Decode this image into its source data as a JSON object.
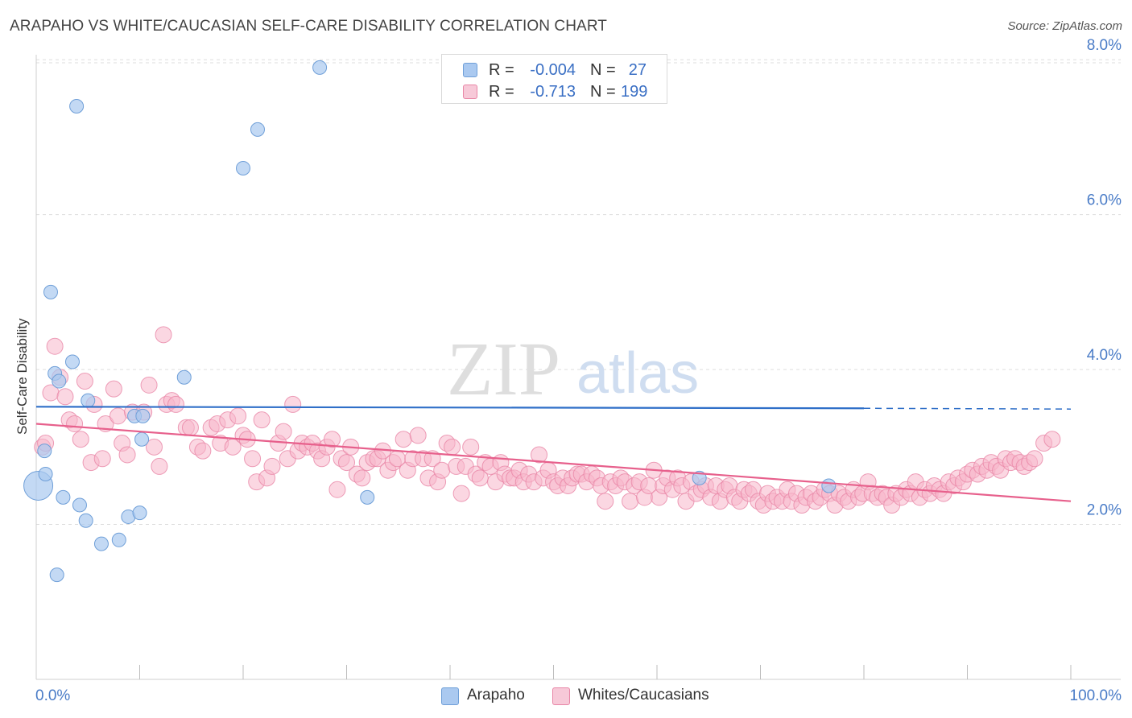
{
  "header": {
    "title": "ARAPAHO VS WHITE/CAUCASIAN SELF-CARE DISABILITY CORRELATION CHART",
    "source": "Source: ZipAtlas.com"
  },
  "watermark": {
    "zip": "ZIP",
    "atlas": "atlas"
  },
  "legend_top": {
    "rows": [
      {
        "r_label": "R =",
        "r_value": "-0.004",
        "n_label": "N =",
        "n_value": "27"
      },
      {
        "r_label": "R =",
        "r_value": "-0.713",
        "n_label": "N =",
        "n_value": "199"
      }
    ]
  },
  "legend_bottom": {
    "items": [
      {
        "label": "Arapaho"
      },
      {
        "label": "Whites/Caucasians"
      }
    ]
  },
  "colors": {
    "arapaho_fill": "#aac9f0",
    "arapaho_stroke": "#6f9fd8",
    "arapaho_line": "#2f6fc8",
    "white_fill": "#f7b6cb",
    "white_stroke": "#e886a6",
    "white_line": "#e7608c",
    "tick_label": "#4a7cc7",
    "grid": "#dddddd"
  },
  "chart_data": {
    "type": "scatter",
    "title": "ARAPAHO VS WHITE/CAUCASIAN SELF-CARE DISABILITY CORRELATION CHART",
    "xlabel": "",
    "ylabel": "Self-Care Disability",
    "xlim": [
      0,
      100
    ],
    "ylim": [
      0,
      8.2
    ],
    "x_tick_labels": [
      "0.0%",
      "100.0%"
    ],
    "y_ticks": [
      2,
      4,
      6,
      8
    ],
    "y_tick_labels": [
      "2.0%",
      "4.0%",
      "6.0%",
      "8.0%"
    ],
    "grid": true,
    "legend_position": "top-center",
    "series": [
      {
        "name": "Arapaho",
        "r": -0.004,
        "n": 27,
        "points": [
          [
            0.2,
            2.5
          ],
          [
            0.8,
            2.95
          ],
          [
            0.9,
            2.65
          ],
          [
            1.4,
            5.0
          ],
          [
            1.8,
            3.95
          ],
          [
            2.0,
            1.35
          ],
          [
            2.2,
            3.85
          ],
          [
            2.6,
            2.35
          ],
          [
            3.5,
            4.1
          ],
          [
            3.9,
            7.4
          ],
          [
            4.2,
            2.25
          ],
          [
            4.8,
            2.05
          ],
          [
            5.0,
            3.6
          ],
          [
            6.3,
            1.75
          ],
          [
            8.0,
            1.8
          ],
          [
            8.9,
            2.1
          ],
          [
            9.5,
            3.4
          ],
          [
            10.0,
            2.15
          ],
          [
            10.2,
            3.1
          ],
          [
            10.3,
            3.4
          ],
          [
            14.3,
            3.9
          ],
          [
            20.0,
            6.6
          ],
          [
            21.4,
            7.1
          ],
          [
            27.4,
            7.9
          ],
          [
            64.1,
            2.6
          ],
          [
            76.6,
            2.5
          ],
          [
            32.0,
            2.35
          ]
        ],
        "trend": {
          "x0": 0,
          "y0": 3.52,
          "x1": 80,
          "y1": 3.5,
          "dashed_to_x": 100,
          "dashed_to_y": 3.49
        }
      },
      {
        "name": "Whites/Caucasians",
        "r": -0.713,
        "n": 199,
        "points": [
          [
            0.6,
            3.0
          ],
          [
            0.9,
            3.05
          ],
          [
            1.4,
            3.7
          ],
          [
            1.8,
            4.3
          ],
          [
            2.3,
            3.9
          ],
          [
            2.8,
            3.65
          ],
          [
            3.2,
            3.35
          ],
          [
            3.7,
            3.3
          ],
          [
            4.3,
            3.1
          ],
          [
            4.7,
            3.85
          ],
          [
            5.3,
            2.8
          ],
          [
            5.6,
            3.55
          ],
          [
            6.4,
            2.85
          ],
          [
            6.7,
            3.3
          ],
          [
            7.5,
            3.75
          ],
          [
            7.9,
            3.4
          ],
          [
            8.3,
            3.05
          ],
          [
            8.8,
            2.9
          ],
          [
            9.3,
            3.45
          ],
          [
            10.4,
            3.45
          ],
          [
            10.9,
            3.8
          ],
          [
            11.4,
            3.0
          ],
          [
            11.9,
            2.75
          ],
          [
            12.3,
            4.45
          ],
          [
            12.6,
            3.55
          ],
          [
            13.1,
            3.6
          ],
          [
            13.5,
            3.55
          ],
          [
            14.5,
            3.25
          ],
          [
            14.9,
            3.25
          ],
          [
            15.6,
            3.0
          ],
          [
            16.1,
            2.95
          ],
          [
            16.9,
            3.25
          ],
          [
            17.5,
            3.3
          ],
          [
            17.8,
            3.05
          ],
          [
            18.5,
            3.35
          ],
          [
            19.0,
            3.0
          ],
          [
            19.5,
            3.4
          ],
          [
            20.0,
            3.15
          ],
          [
            20.4,
            3.1
          ],
          [
            20.9,
            2.85
          ],
          [
            21.3,
            2.55
          ],
          [
            21.8,
            3.35
          ],
          [
            22.3,
            2.6
          ],
          [
            22.8,
            2.75
          ],
          [
            23.4,
            3.05
          ],
          [
            23.9,
            3.2
          ],
          [
            24.3,
            2.85
          ],
          [
            24.8,
            3.55
          ],
          [
            25.3,
            2.95
          ],
          [
            25.7,
            3.05
          ],
          [
            26.2,
            3.0
          ],
          [
            26.7,
            3.05
          ],
          [
            27.2,
            2.95
          ],
          [
            27.6,
            2.85
          ],
          [
            28.1,
            3.0
          ],
          [
            28.6,
            3.1
          ],
          [
            29.1,
            2.45
          ],
          [
            29.5,
            2.85
          ],
          [
            30.0,
            2.8
          ],
          [
            30.4,
            3.0
          ],
          [
            31.0,
            2.65
          ],
          [
            31.5,
            2.6
          ],
          [
            32.0,
            2.8
          ],
          [
            32.6,
            2.85
          ],
          [
            33.0,
            2.85
          ],
          [
            33.5,
            2.95
          ],
          [
            34.0,
            2.7
          ],
          [
            34.5,
            2.8
          ],
          [
            34.9,
            2.85
          ],
          [
            35.5,
            3.1
          ],
          [
            35.9,
            2.7
          ],
          [
            36.4,
            2.85
          ],
          [
            36.9,
            3.15
          ],
          [
            37.4,
            2.85
          ],
          [
            37.9,
            2.6
          ],
          [
            38.3,
            2.85
          ],
          [
            38.8,
            2.55
          ],
          [
            39.2,
            2.7
          ],
          [
            39.7,
            3.05
          ],
          [
            40.2,
            3.0
          ],
          [
            40.6,
            2.75
          ],
          [
            41.1,
            2.4
          ],
          [
            41.5,
            2.75
          ],
          [
            42.0,
            3.0
          ],
          [
            42.5,
            2.65
          ],
          [
            42.9,
            2.6
          ],
          [
            43.4,
            2.8
          ],
          [
            43.9,
            2.75
          ],
          [
            44.4,
            2.55
          ],
          [
            44.9,
            2.8
          ],
          [
            45.3,
            2.65
          ],
          [
            45.8,
            2.6
          ],
          [
            46.2,
            2.6
          ],
          [
            46.7,
            2.7
          ],
          [
            47.1,
            2.55
          ],
          [
            47.6,
            2.65
          ],
          [
            48.1,
            2.55
          ],
          [
            48.6,
            2.9
          ],
          [
            49.0,
            2.6
          ],
          [
            49.5,
            2.7
          ],
          [
            50.0,
            2.55
          ],
          [
            50.4,
            2.5
          ],
          [
            50.9,
            2.6
          ],
          [
            51.4,
            2.5
          ],
          [
            51.8,
            2.6
          ],
          [
            52.3,
            2.65
          ],
          [
            52.7,
            2.65
          ],
          [
            53.2,
            2.55
          ],
          [
            53.7,
            2.65
          ],
          [
            54.2,
            2.6
          ],
          [
            54.6,
            2.5
          ],
          [
            55.0,
            2.3
          ],
          [
            55.5,
            2.55
          ],
          [
            56.0,
            2.5
          ],
          [
            56.5,
            2.6
          ],
          [
            56.9,
            2.55
          ],
          [
            57.4,
            2.3
          ],
          [
            57.8,
            2.5
          ],
          [
            58.3,
            2.55
          ],
          [
            58.8,
            2.35
          ],
          [
            59.2,
            2.5
          ],
          [
            59.7,
            2.7
          ],
          [
            60.2,
            2.35
          ],
          [
            60.6,
            2.5
          ],
          [
            61.0,
            2.6
          ],
          [
            61.5,
            2.45
          ],
          [
            62.0,
            2.6
          ],
          [
            62.4,
            2.5
          ],
          [
            62.8,
            2.3
          ],
          [
            63.3,
            2.55
          ],
          [
            63.8,
            2.4
          ],
          [
            64.3,
            2.45
          ],
          [
            64.7,
            2.5
          ],
          [
            65.2,
            2.35
          ],
          [
            65.7,
            2.5
          ],
          [
            66.1,
            2.3
          ],
          [
            66.6,
            2.45
          ],
          [
            67.0,
            2.5
          ],
          [
            67.5,
            2.35
          ],
          [
            68.0,
            2.3
          ],
          [
            68.4,
            2.45
          ],
          [
            68.9,
            2.4
          ],
          [
            69.3,
            2.45
          ],
          [
            69.8,
            2.3
          ],
          [
            70.3,
            2.25
          ],
          [
            70.7,
            2.4
          ],
          [
            71.2,
            2.3
          ],
          [
            71.6,
            2.35
          ],
          [
            72.1,
            2.3
          ],
          [
            72.6,
            2.45
          ],
          [
            73.0,
            2.3
          ],
          [
            73.5,
            2.4
          ],
          [
            74.0,
            2.25
          ],
          [
            74.4,
            2.35
          ],
          [
            74.9,
            2.4
          ],
          [
            75.3,
            2.3
          ],
          [
            75.8,
            2.35
          ],
          [
            76.2,
            2.45
          ],
          [
            76.7,
            2.4
          ],
          [
            77.2,
            2.25
          ],
          [
            77.6,
            2.4
          ],
          [
            78.1,
            2.35
          ],
          [
            78.5,
            2.3
          ],
          [
            79.0,
            2.45
          ],
          [
            79.5,
            2.35
          ],
          [
            79.9,
            2.4
          ],
          [
            80.4,
            2.55
          ],
          [
            80.8,
            2.4
          ],
          [
            81.3,
            2.35
          ],
          [
            81.8,
            2.4
          ],
          [
            82.2,
            2.35
          ],
          [
            82.7,
            2.25
          ],
          [
            83.1,
            2.4
          ],
          [
            83.6,
            2.35
          ],
          [
            84.1,
            2.45
          ],
          [
            84.5,
            2.4
          ],
          [
            85.0,
            2.55
          ],
          [
            85.4,
            2.35
          ],
          [
            85.9,
            2.45
          ],
          [
            86.4,
            2.4
          ],
          [
            86.8,
            2.5
          ],
          [
            87.3,
            2.45
          ],
          [
            87.7,
            2.4
          ],
          [
            88.2,
            2.55
          ],
          [
            88.7,
            2.5
          ],
          [
            89.1,
            2.6
          ],
          [
            89.6,
            2.55
          ],
          [
            90.0,
            2.65
          ],
          [
            90.5,
            2.7
          ],
          [
            91.0,
            2.65
          ],
          [
            91.4,
            2.75
          ],
          [
            91.9,
            2.7
          ],
          [
            92.3,
            2.8
          ],
          [
            92.8,
            2.75
          ],
          [
            93.2,
            2.7
          ],
          [
            93.7,
            2.85
          ],
          [
            94.2,
            2.8
          ],
          [
            94.6,
            2.85
          ],
          [
            95.1,
            2.8
          ],
          [
            95.5,
            2.75
          ],
          [
            96.0,
            2.8
          ],
          [
            96.5,
            2.85
          ],
          [
            97.4,
            3.05
          ],
          [
            98.2,
            3.1
          ]
        ],
        "trend": {
          "x0": 0,
          "y0": 3.3,
          "x1": 100,
          "y1": 2.3
        }
      }
    ]
  }
}
